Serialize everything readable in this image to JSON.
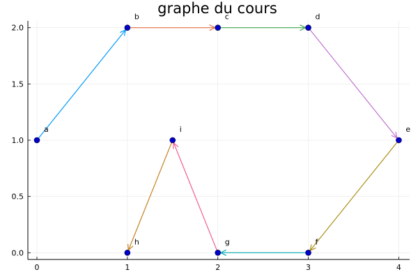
{
  "chart_data": {
    "type": "graph",
    "title": "graphe du cours",
    "xlabel": "",
    "ylabel": "",
    "xlim": [
      -0.1,
      4.12
    ],
    "ylim": [
      -0.06,
      2.06
    ],
    "xticks": [
      0,
      1,
      2,
      3,
      4
    ],
    "yticks": [
      0.0,
      0.5,
      1.0,
      1.5,
      2.0
    ],
    "xtick_labels": [
      "0",
      "1",
      "2",
      "3",
      "4"
    ],
    "ytick_labels": [
      "0.0",
      "0.5",
      "1.0",
      "1.5",
      "2.0"
    ],
    "grid": true,
    "node_color": "#0000cc",
    "nodes": [
      {
        "name": "a",
        "x": 0,
        "y": 1.0
      },
      {
        "name": "b",
        "x": 1,
        "y": 2.0
      },
      {
        "name": "c",
        "x": 2,
        "y": 2.0
      },
      {
        "name": "d",
        "x": 3,
        "y": 2.0
      },
      {
        "name": "e",
        "x": 4,
        "y": 1.0
      },
      {
        "name": "f",
        "x": 3,
        "y": 0.0
      },
      {
        "name": "g",
        "x": 2,
        "y": 0.0
      },
      {
        "name": "h",
        "x": 1,
        "y": 0.0
      },
      {
        "name": "i",
        "x": 1.5,
        "y": 1.0
      }
    ],
    "edges": [
      {
        "from": "a",
        "to": "b",
        "color": "#009af9"
      },
      {
        "from": "b",
        "to": "c",
        "color": "#e26f46"
      },
      {
        "from": "c",
        "to": "d",
        "color": "#3da44d"
      },
      {
        "from": "d",
        "to": "e",
        "color": "#c271d2"
      },
      {
        "from": "e",
        "to": "f",
        "color": "#ac8d18"
      },
      {
        "from": "f",
        "to": "g",
        "color": "#00a9ad"
      },
      {
        "from": "g",
        "to": "i",
        "color": "#ed5d92"
      },
      {
        "from": "i",
        "to": "h",
        "color": "#c68125"
      }
    ]
  }
}
